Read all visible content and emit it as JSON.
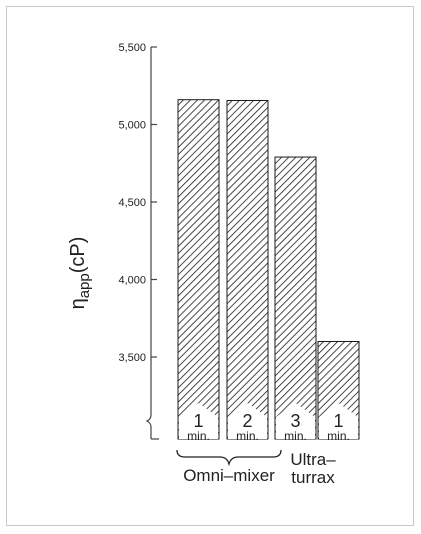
{
  "chart_data": {
    "type": "bar",
    "ylabel_main": "η",
    "ylabel_sub": "app",
    "ylabel_unit": "(cP)",
    "yticks": [
      "3,500",
      "4,000",
      "4,500",
      "5,000",
      "5,500"
    ],
    "ylim": [
      3000,
      5500
    ],
    "y_axis_break": true,
    "categories": [
      {
        "num": "1",
        "unit": "min.",
        "group": "Omni-mixer"
      },
      {
        "num": "2",
        "unit": "min.",
        "group": "Omni-mixer"
      },
      {
        "num": "3",
        "unit": "min.",
        "group": "Omni-mixer"
      },
      {
        "num": "1",
        "unit": "min.",
        "group": "Ultra-turrax"
      }
    ],
    "values": [
      5160,
      5155,
      4790,
      3600
    ],
    "groups": {
      "omni": "Omni–mixer",
      "ultra_1": "Ultra–",
      "ultra_2": "turrax"
    },
    "bar_pattern": "diagonal-hatch",
    "bar_color": "#1a1a1a"
  }
}
